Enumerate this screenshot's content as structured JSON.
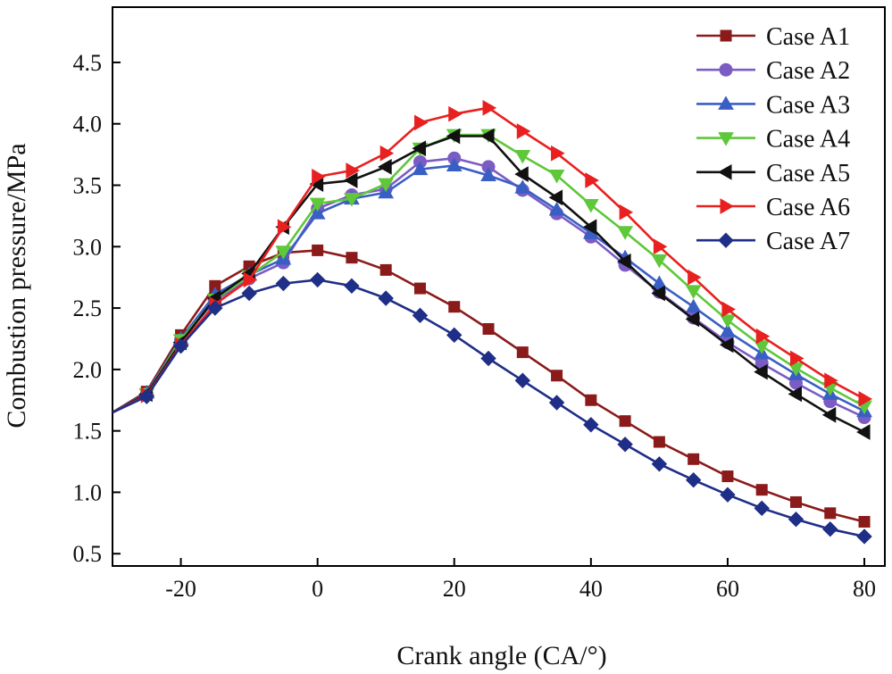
{
  "chart_data": {
    "type": "line",
    "title": "",
    "xlabel": "Crank angle (CA/°)",
    "ylabel": "Combustion pressure/MPa",
    "xlim": [
      -30,
      83
    ],
    "ylim": [
      0.4,
      4.95
    ],
    "xticks": [
      -20,
      0,
      20,
      40,
      60,
      80
    ],
    "xtick_labels": [
      "-20",
      "0",
      "20",
      "40",
      "60",
      "80"
    ],
    "yticks": [
      0.5,
      1.0,
      1.5,
      2.0,
      2.5,
      3.0,
      3.5,
      4.0,
      4.5
    ],
    "ytick_labels": [
      "0.5",
      "1.0",
      "1.5",
      "2.0",
      "2.5",
      "3.0",
      "3.5",
      "4.0",
      "4.5"
    ],
    "grid": false,
    "legend_position": "top-right",
    "x": [
      -30,
      -25,
      -20,
      -15,
      -10,
      -5,
      0,
      5,
      10,
      15,
      20,
      25,
      30,
      35,
      40,
      45,
      50,
      55,
      60,
      65,
      70,
      75,
      80
    ],
    "series": [
      {
        "name": "Case A1",
        "color": "#8b1a1a",
        "marker": "square",
        "values": [
          1.65,
          1.82,
          2.28,
          2.68,
          2.84,
          2.95,
          2.97,
          2.91,
          2.81,
          2.66,
          2.51,
          2.33,
          2.14,
          1.95,
          1.75,
          1.58,
          1.41,
          1.27,
          1.13,
          1.02,
          0.92,
          0.83,
          0.76
        ]
      },
      {
        "name": "Case A2",
        "color": "#7b5cc4",
        "marker": "circle",
        "values": [
          1.65,
          1.8,
          2.24,
          2.56,
          2.74,
          2.87,
          3.31,
          3.42,
          3.47,
          3.69,
          3.72,
          3.65,
          3.46,
          3.27,
          3.08,
          2.85,
          2.63,
          2.42,
          2.22,
          2.05,
          1.89,
          1.74,
          1.61
        ]
      },
      {
        "name": "Case A3",
        "color": "#3a5fc4",
        "marker": "triangle-up",
        "values": [
          1.65,
          1.81,
          2.25,
          2.61,
          2.77,
          2.9,
          3.27,
          3.39,
          3.44,
          3.63,
          3.66,
          3.58,
          3.48,
          3.3,
          3.11,
          2.91,
          2.7,
          2.51,
          2.31,
          2.13,
          1.96,
          1.8,
          1.66
        ]
      },
      {
        "name": "Case A4",
        "color": "#5fc73a",
        "marker": "triangle-down",
        "values": [
          1.65,
          1.8,
          2.24,
          2.57,
          2.76,
          2.96,
          3.35,
          3.39,
          3.51,
          3.8,
          3.91,
          3.91,
          3.74,
          3.58,
          3.34,
          3.12,
          2.89,
          2.64,
          2.4,
          2.19,
          2.01,
          1.85,
          1.7
        ]
      },
      {
        "name": "Case A5",
        "color": "#111111",
        "marker": "triangle-left",
        "values": [
          1.65,
          1.8,
          2.22,
          2.58,
          2.78,
          3.16,
          3.51,
          3.54,
          3.65,
          3.8,
          3.9,
          3.9,
          3.59,
          3.4,
          3.16,
          2.88,
          2.62,
          2.41,
          2.2,
          1.98,
          1.8,
          1.63,
          1.49
        ]
      },
      {
        "name": "Case A6",
        "color": "#e82020",
        "marker": "triangle-right",
        "values": [
          1.65,
          1.79,
          2.2,
          2.53,
          2.73,
          3.16,
          3.57,
          3.62,
          3.76,
          4.01,
          4.08,
          4.13,
          3.94,
          3.76,
          3.54,
          3.28,
          3.0,
          2.75,
          2.49,
          2.27,
          2.09,
          1.91,
          1.76
        ]
      },
      {
        "name": "Case A7",
        "color": "#1f2e87",
        "marker": "diamond",
        "values": [
          1.65,
          1.78,
          2.19,
          2.5,
          2.62,
          2.7,
          2.73,
          2.68,
          2.58,
          2.44,
          2.28,
          2.09,
          1.91,
          1.73,
          1.55,
          1.39,
          1.23,
          1.1,
          0.98,
          0.87,
          0.78,
          0.7,
          0.64
        ]
      }
    ]
  }
}
